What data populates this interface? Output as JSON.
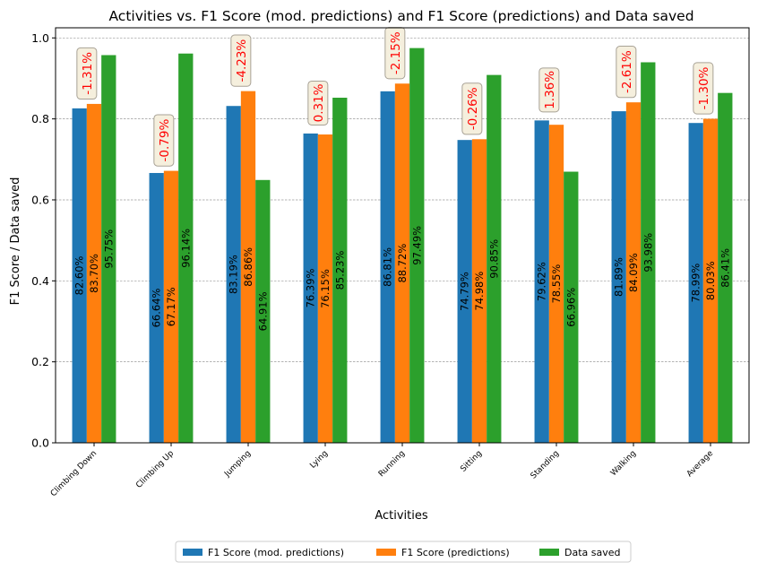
{
  "chart_data": {
    "type": "bar",
    "title": "Activities vs. F1 Score (mod. predictions) and F1 Score (predictions) and Data saved",
    "xlabel": "Activities",
    "ylabel": "F1 Score / Data saved",
    "ylim": [
      0,
      1.025
    ],
    "yticks": [
      0.0,
      0.2,
      0.4,
      0.6,
      0.8,
      1.0
    ],
    "ytick_labels": [
      "0.0",
      "0.2",
      "0.4",
      "0.6",
      "0.8",
      "1.0"
    ],
    "grid": "horizontal dashed",
    "categories": [
      "Climbing Down",
      "Climbing Up",
      "Jumping",
      "Lying",
      "Running",
      "Sitting",
      "Standing",
      "Walking",
      "Average"
    ],
    "series": [
      {
        "name": "F1 Score (mod. predictions)",
        "color": "#1f77b4",
        "values": [
          0.826,
          0.6664,
          0.8319,
          0.7639,
          0.8681,
          0.7479,
          0.7962,
          0.8189,
          0.7899
        ],
        "labels": [
          "82.60%",
          "66.64%",
          "83.19%",
          "76.39%",
          "86.81%",
          "74.79%",
          "79.62%",
          "81.89%",
          "78.99%"
        ]
      },
      {
        "name": "F1 Score (predictions)",
        "color": "#ff7f0e",
        "values": [
          0.837,
          0.6717,
          0.8686,
          0.7615,
          0.8872,
          0.7498,
          0.7855,
          0.8409,
          0.8003
        ],
        "labels": [
          "83.70%",
          "67.17%",
          "86.86%",
          "76.15%",
          "88.72%",
          "74.98%",
          "78.55%",
          "84.09%",
          "80.03%"
        ]
      },
      {
        "name": "Data saved",
        "color": "#2ca02c",
        "values": [
          0.9575,
          0.9614,
          0.6491,
          0.8523,
          0.9749,
          0.9085,
          0.6696,
          0.9398,
          0.8641
        ],
        "labels": [
          "95.75%",
          "96.14%",
          "64.91%",
          "85.23%",
          "97.49%",
          "90.85%",
          "66.96%",
          "93.98%",
          "86.41%"
        ]
      }
    ],
    "differences": [
      "-1.31%",
      "-0.79%",
      "-4.23%",
      "0.31%",
      "-2.15%",
      "-0.26%",
      "1.36%",
      "-2.61%",
      "-1.30%"
    ],
    "difference_color": "#ff0000",
    "legend": "bottom-center"
  }
}
